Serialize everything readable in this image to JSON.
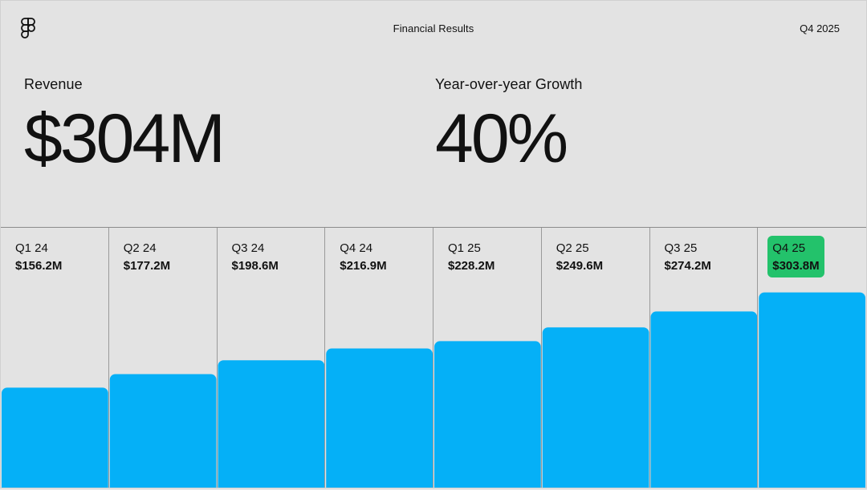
{
  "header": {
    "title": "Financial Results",
    "period": "Q4 2025",
    "logo_icon": "figma-logo-icon"
  },
  "kpis": {
    "revenue": {
      "label": "Revenue",
      "value": "$304M"
    },
    "growth": {
      "label": "Year-over-year Growth",
      "value": "40%"
    }
  },
  "colors": {
    "bar": "#05b0f7",
    "highlight": "#23c26b",
    "background": "#e3e3e3"
  },
  "chart_data": {
    "type": "bar",
    "categories": [
      "Q1 24",
      "Q2 24",
      "Q3 24",
      "Q4 24",
      "Q1 25",
      "Q2 25",
      "Q3 25",
      "Q4 25"
    ],
    "values": [
      156.2,
      177.2,
      198.6,
      216.9,
      228.2,
      249.6,
      274.2,
      303.8
    ],
    "value_labels": [
      "$156.2M",
      "$177.2M",
      "$198.6M",
      "$216.9M",
      "$228.2M",
      "$249.6M",
      "$274.2M",
      "$303.8M"
    ],
    "highlight_index": 7,
    "title": "",
    "xlabel": "",
    "ylabel": "",
    "grid": false,
    "ylim": [
      0,
      404
    ]
  }
}
